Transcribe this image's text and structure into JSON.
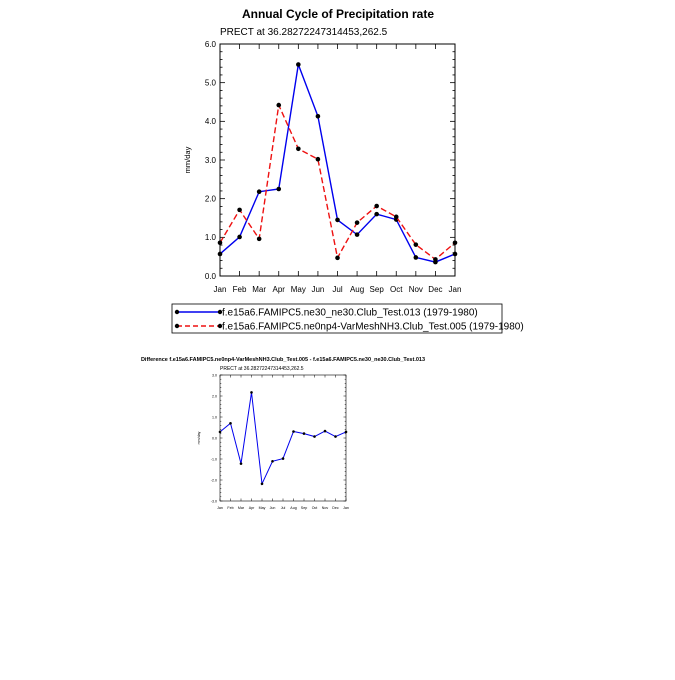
{
  "chart_data": [
    {
      "type": "line",
      "title": "Annual Cycle of Precipitation rate",
      "subtitle": "PRECT at 36.28272247314453,262.5",
      "ylabel": "mm/day",
      "ylim": [
        0,
        6
      ],
      "yticks": [
        "0.0",
        "1.0",
        "2.0",
        "3.0",
        "4.0",
        "5.0",
        "6.0"
      ],
      "categories": [
        "Jan",
        "Feb",
        "Mar",
        "Apr",
        "May",
        "Jun",
        "Jul",
        "Aug",
        "Sep",
        "Oct",
        "Nov",
        "Dec",
        "Jan"
      ],
      "series": [
        {
          "name": "f.e15a6.FAMIPC5.ne30_ne30.Club_Test.013 (1979-1980)",
          "color": "#0000ee",
          "dash": "solid",
          "values": [
            0.57,
            1.01,
            2.18,
            2.25,
            5.47,
            4.13,
            1.45,
            1.07,
            1.6,
            1.46,
            0.48,
            0.36,
            0.57
          ]
        },
        {
          "name": "f.e15a6.FAMIPC5.ne0np4-VarMeshNH3.Club_Test.005 (1979-1980)",
          "color": "#ee1111",
          "dash": "dashed",
          "values": [
            0.86,
            1.71,
            0.96,
            4.42,
            3.29,
            3.02,
            0.47,
            1.38,
            1.81,
            1.53,
            0.81,
            0.43,
            0.86
          ]
        }
      ],
      "grid": false,
      "legend_position": "bottom"
    },
    {
      "type": "line",
      "title": "Difference f.e15a6.FAMIPC5.ne0np4-VarMeshNH3.Club_Test.005 - f.e15a6.FAMIPC5.ne30_ne30.Club_Test.013",
      "subtitle": "PRECT at 36.28272247314453,262.5",
      "ylabel": "mm/day",
      "ylim": [
        -3,
        3
      ],
      "yticks": [
        "-3.0",
        "-2.0",
        "-1.0",
        "0.0",
        "1.0",
        "2.0",
        "3.0"
      ],
      "categories": [
        "Jan",
        "Feb",
        "Mar",
        "Apr",
        "May",
        "Jun",
        "Jul",
        "Aug",
        "Sep",
        "Oct",
        "Nov",
        "Dec",
        "Jan"
      ],
      "series": [
        {
          "color": "#0000ee",
          "dash": "solid",
          "values": [
            0.29,
            0.7,
            -1.22,
            2.17,
            -2.18,
            -1.11,
            -0.98,
            0.31,
            0.21,
            0.07,
            0.33,
            0.07,
            0.29
          ]
        }
      ],
      "grid": false
    }
  ]
}
